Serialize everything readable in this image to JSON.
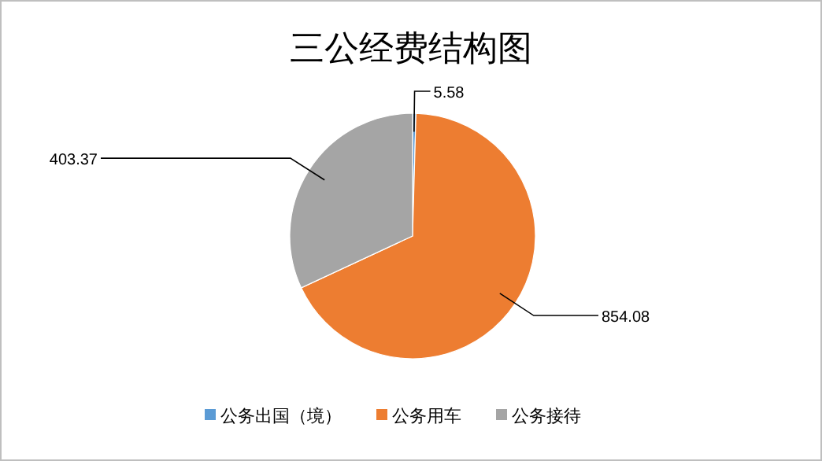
{
  "chart_data": {
    "type": "pie",
    "title": "三公经费结构图",
    "categories": [
      "公务出国（境）",
      "公务用车",
      "公务接待"
    ],
    "values": [
      5.58,
      854.08,
      403.37
    ],
    "colors": [
      "#5b9bd5",
      "#ed7d31",
      "#a5a5a5"
    ],
    "data_labels": true,
    "legend": "bottom"
  }
}
